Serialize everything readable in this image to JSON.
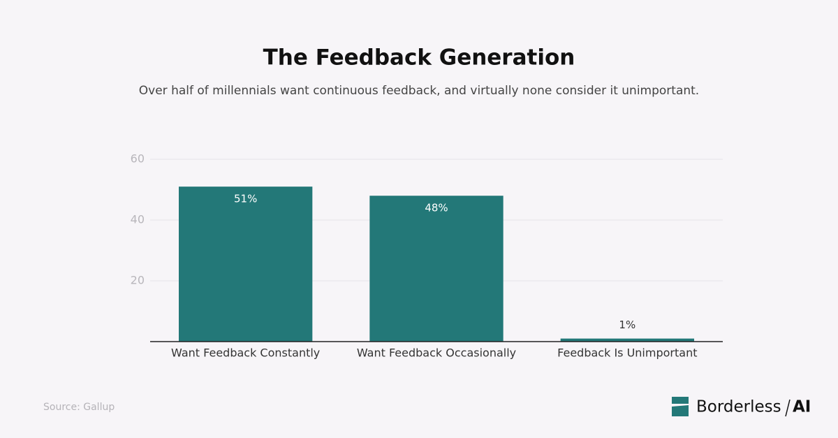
{
  "chart_data": {
    "type": "bar",
    "title": "The Feedback Generation",
    "subtitle": "Over half of millennials want continuous feedback, and virtually none consider it unimportant.",
    "categories": [
      "Want Feedback Constantly",
      "Want Feedback Occasionally",
      "Feedback Is Unimportant"
    ],
    "values": [
      51,
      48,
      1
    ],
    "value_labels": [
      "51%",
      "48%",
      "1%"
    ],
    "color": "#237878",
    "ylim": [
      0,
      60
    ],
    "yticks": [
      20,
      40,
      60
    ],
    "grid": true
  },
  "source": "Source: Gallup",
  "brand": {
    "name": "Borderless",
    "suffix": "AI"
  }
}
